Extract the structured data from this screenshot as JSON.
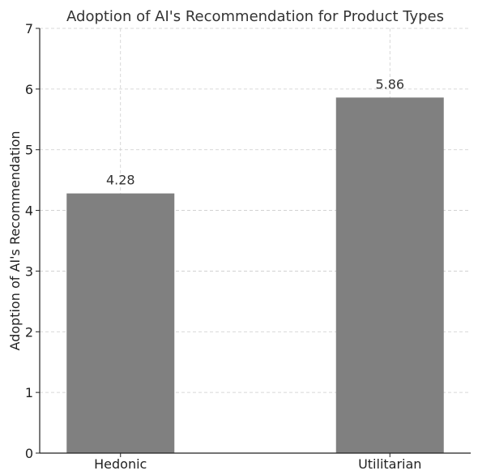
{
  "chart_data": {
    "type": "bar",
    "title": "Adoption of AI's Recommendation for Product Types",
    "xlabel": "",
    "ylabel": "Adoption of AI's Recommendation",
    "categories": [
      "Hedonic",
      "Utilitarian"
    ],
    "values": [
      4.28,
      5.86
    ],
    "value_labels": [
      "4.28",
      "5.86"
    ],
    "ylim": [
      0,
      7
    ],
    "yticks": [
      0,
      1,
      2,
      3,
      4,
      5,
      6,
      7
    ],
    "grid": true,
    "bar_color": "#808080"
  }
}
